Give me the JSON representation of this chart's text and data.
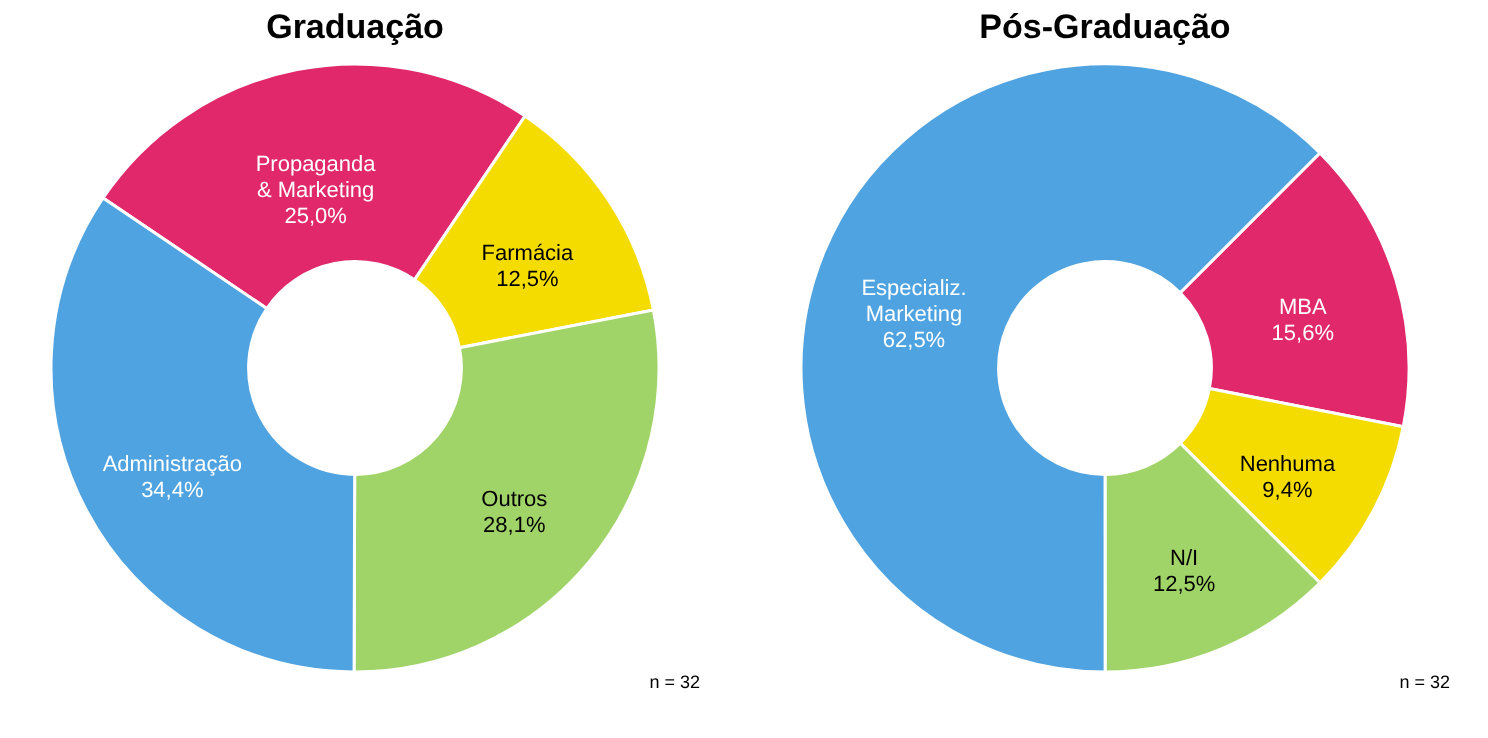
{
  "chart_data": [
    {
      "type": "donut",
      "title": "Graduação",
      "categories": [
        "Propaganda & Marketing",
        "Farmácia",
        "Outros",
        "Administração"
      ],
      "values": [
        25.0,
        12.5,
        28.1,
        34.4
      ],
      "colors": [
        "#e0286a",
        "#f5dc00",
        "#a0d468",
        "#4fa3e0"
      ],
      "value_labels": [
        "25,0%",
        "12,5%",
        "28,1%",
        "34,4%"
      ],
      "annotations": [
        "n = 32"
      ]
    },
    {
      "type": "donut",
      "title": "Pós-Graduação",
      "categories": [
        "MBA",
        "Nenhuma",
        "N/I",
        "Especializ. Marketing"
      ],
      "values": [
        15.6,
        9.4,
        12.5,
        62.5
      ],
      "colors": [
        "#e0286a",
        "#f5dc00",
        "#a0d468",
        "#4fa3e0"
      ],
      "value_labels": [
        "15,6%",
        "9,4%",
        "12,5%",
        "62,5%"
      ],
      "annotations": [
        "n = 32"
      ]
    }
  ]
}
